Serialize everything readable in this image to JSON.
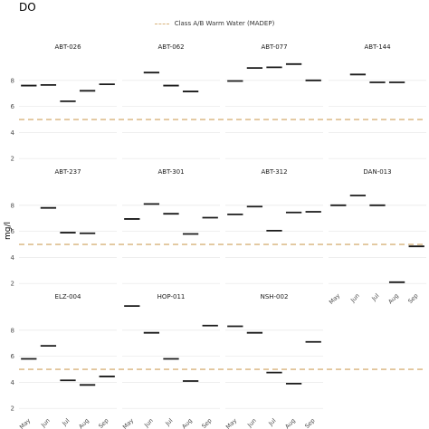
{
  "title": "DO",
  "chart_data": {
    "type": "line",
    "title": "DO",
    "ylabel": "mg/l",
    "xlabel": "",
    "categories": [
      "May",
      "Jun",
      "Jul",
      "Aug",
      "Sep"
    ],
    "ylim": [
      1.6,
      10.0
    ],
    "yticks": [
      2,
      4,
      6,
      8
    ],
    "grid": true,
    "legend_position": "top-center",
    "reference_line": {
      "name": "Class A/B Warm Water (MADEP)",
      "value": 5.0,
      "color": "#d8b27a"
    },
    "facets": [
      {
        "name": "ABT-026",
        "values": [
          7.6,
          7.65,
          6.4,
          7.2,
          7.7
        ]
      },
      {
        "name": "ABT-062",
        "values": [
          null,
          8.6,
          7.6,
          7.15,
          null
        ]
      },
      {
        "name": "ABT-077",
        "values": [
          7.95,
          8.95,
          9.0,
          9.25,
          8.0
        ]
      },
      {
        "name": "ABT-144",
        "values": [
          null,
          8.45,
          7.85,
          7.85,
          null
        ]
      },
      {
        "name": "ABT-237",
        "values": [
          null,
          7.8,
          5.9,
          5.85,
          null
        ]
      },
      {
        "name": "ABT-301",
        "values": [
          6.95,
          8.1,
          7.35,
          5.8,
          7.05
        ]
      },
      {
        "name": "ABT-312",
        "values": [
          7.3,
          7.9,
          6.05,
          7.45,
          7.5
        ]
      },
      {
        "name": "DAN-013",
        "values": [
          8.0,
          8.75,
          8.0,
          2.1,
          4.85
        ]
      },
      {
        "name": "ELZ-004",
        "values": [
          5.8,
          6.8,
          4.15,
          3.8,
          4.45
        ]
      },
      {
        "name": "HOP-011",
        "values": [
          9.85,
          7.8,
          5.8,
          4.1,
          8.35
        ]
      },
      {
        "name": "NSH-002",
        "values": [
          8.3,
          7.8,
          4.75,
          3.9,
          7.1
        ]
      }
    ]
  }
}
